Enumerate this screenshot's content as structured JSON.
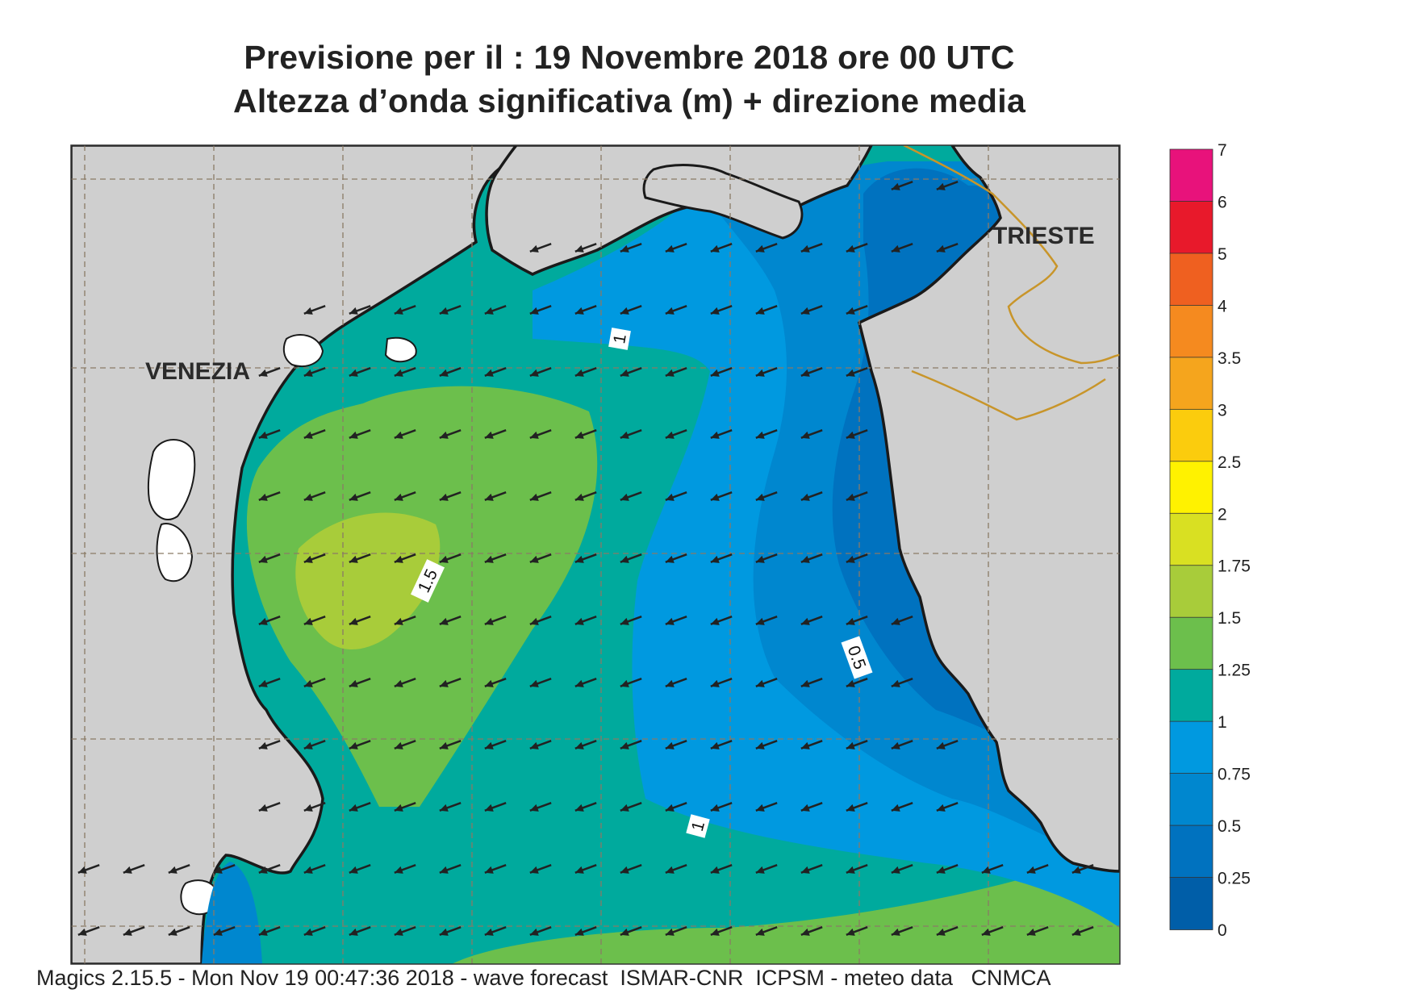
{
  "title": {
    "line1": "Previsione per il  :  19 Novembre  2018   ore 00 UTC",
    "line2": "Altezza d’onda significativa (m) + direzione media"
  },
  "cities": [
    {
      "name": "VENEZIA"
    },
    {
      "name": "TRIESTE"
    }
  ],
  "contour_labels": [
    "1",
    "1.5",
    "0.5",
    "1"
  ],
  "legend": {
    "ticks": [
      "7",
      "6",
      "5",
      "4",
      "3.5",
      "3",
      "2.5",
      "2",
      "1.75",
      "1.5",
      "1.25",
      "1",
      "0.75",
      "0.5",
      "0.25",
      "0"
    ],
    "colors": [
      "#e8127b",
      "#e8192b",
      "#ef6020",
      "#f58a1f",
      "#f5a51d",
      "#fbcc0d",
      "#fff200",
      "#d9e022",
      "#a8cc3a",
      "#6cbf4c",
      "#00aa9d",
      "#0099e0",
      "#0087cf",
      "#0072bf",
      "#005ea8"
    ]
  },
  "colors": {
    "land": "#cfcfcf",
    "coast": "#1a1a1a",
    "border": "#c8952a",
    "grid": "#8a7a66",
    "arrow": "#222222"
  },
  "footer": "Magics 2.15.5 - Mon Nov 19 00:47:36 2018 - wave forecast  ISMAR-CNR  ICPSM - meteo data   CNMCA"
}
